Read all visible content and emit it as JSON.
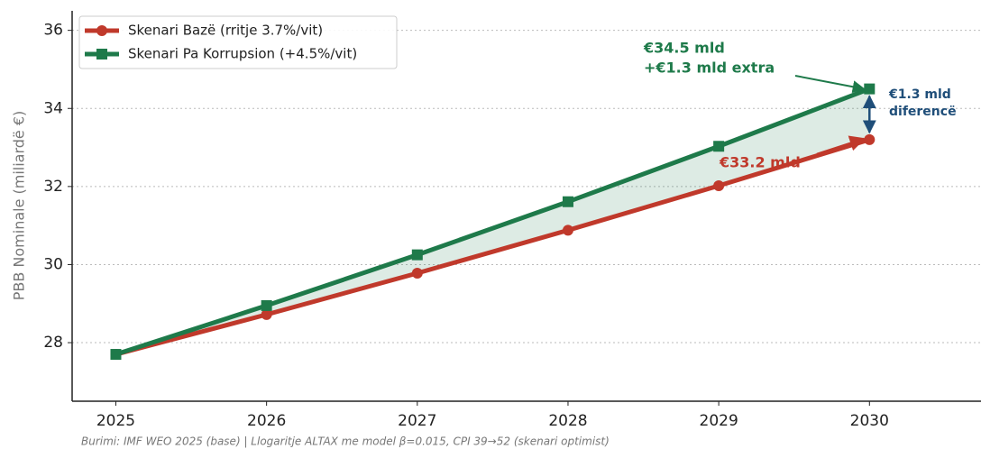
{
  "chart_data": {
    "type": "line",
    "x": [
      2025,
      2026,
      2027,
      2028,
      2029,
      2030
    ],
    "series": [
      {
        "name": "Skenari Bazë (rritje 3.7%/vit)",
        "color": "#c0392b",
        "marker": "circle",
        "values": [
          27.7,
          28.72,
          29.78,
          30.88,
          32.02,
          33.2
        ]
      },
      {
        "name": "Skenari Pa Korrupsion (+4.5%/vit)",
        "color": "#1e7a4a",
        "marker": "square",
        "values": [
          27.7,
          28.95,
          30.25,
          31.61,
          33.03,
          34.5
        ]
      }
    ],
    "ylabel": "PBB Nominale (miliardë €)",
    "xlim": [
      2024.71,
      2030.74
    ],
    "ylim": [
      26.5,
      36.5
    ],
    "xticks": [
      2025,
      2026,
      2027,
      2028,
      2029,
      2030
    ],
    "yticks": [
      28,
      30,
      32,
      34,
      36
    ],
    "grid": true,
    "legend": "upper left",
    "annotations": {
      "top": [
        "€34.5 mld",
        "+€1.3 mld extra"
      ],
      "base": "€33.2 mld",
      "gap": [
        "€1.3 mld",
        "diferencë"
      ]
    },
    "source": "Burimi: IMF WEO 2025 (base) | Llogaritje ALTAX me model β=0.015, CPI 39→52 (skenari optimist)"
  }
}
